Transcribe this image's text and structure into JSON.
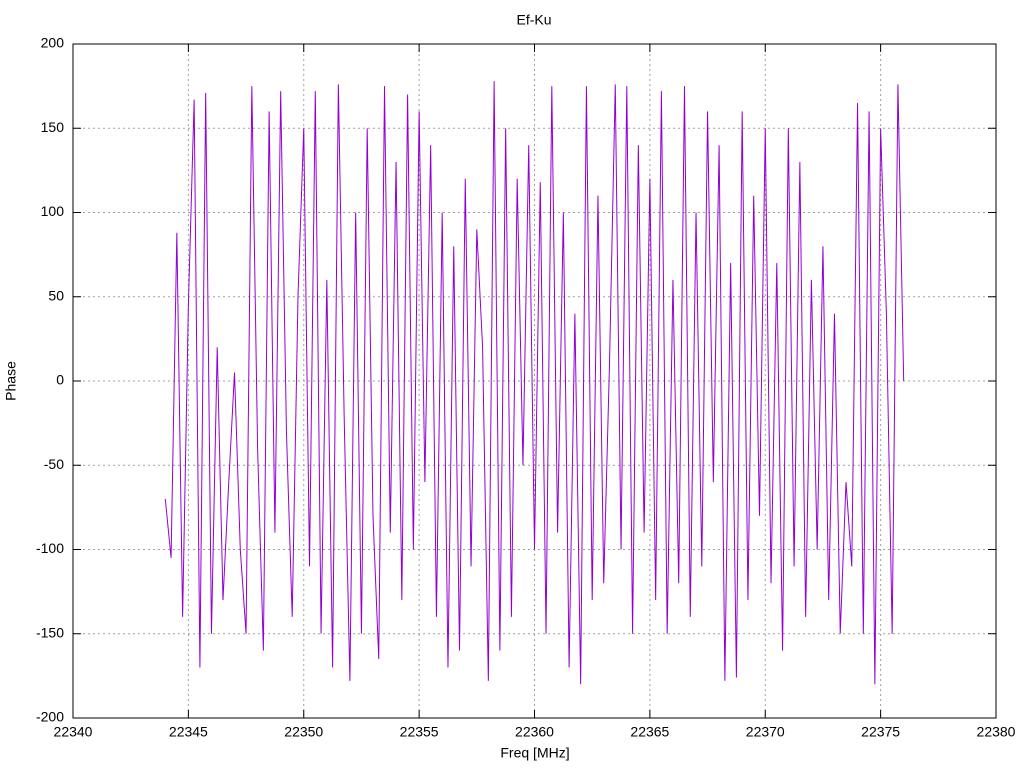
{
  "chart_data": {
    "type": "line",
    "title": "Ef-Ku",
    "xlabel": "Freq [MHz]",
    "ylabel": "Phase",
    "xlim": [
      22340,
      22380
    ],
    "xticks": [
      22340,
      22345,
      22350,
      22355,
      22360,
      22365,
      22370,
      22375,
      22380
    ],
    "ylim": [
      -200,
      200
    ],
    "yticks": [
      -200,
      -150,
      -100,
      -50,
      0,
      50,
      100,
      150,
      200
    ],
    "grid": true,
    "series": [
      {
        "color": "#9400d3",
        "x": [
          22344,
          22344.25,
          22344.5,
          22344.75,
          22345,
          22345.25,
          22345.5,
          22345.75,
          22346,
          22346.25,
          22346.5,
          22346.75,
          22347,
          22347.25,
          22347.5,
          22347.75,
          22348,
          22348.25,
          22348.5,
          22348.75,
          22349,
          22349.25,
          22349.5,
          22349.75,
          22350,
          22350.25,
          22350.5,
          22350.75,
          22351,
          22351.25,
          22351.5,
          22351.75,
          22352,
          22352.25,
          22352.5,
          22352.75,
          22353,
          22353.25,
          22353.5,
          22353.75,
          22354,
          22354.25,
          22354.5,
          22354.75,
          22355,
          22355.25,
          22355.5,
          22355.75,
          22356,
          22356.25,
          22356.5,
          22356.75,
          22357,
          22357.25,
          22357.5,
          22357.75,
          22358,
          22358.25,
          22358.5,
          22358.75,
          22359,
          22359.25,
          22359.5,
          22359.75,
          22360,
          22360.25,
          22360.5,
          22360.75,
          22361,
          22361.25,
          22361.5,
          22361.75,
          22362,
          22362.25,
          22362.5,
          22362.75,
          22363,
          22363.25,
          22363.5,
          22363.75,
          22364,
          22364.25,
          22364.5,
          22364.75,
          22365,
          22365.25,
          22365.5,
          22365.75,
          22366,
          22366.25,
          22366.5,
          22366.75,
          22367,
          22367.25,
          22367.5,
          22367.75,
          22368,
          22368.25,
          22368.5,
          22368.75,
          22369,
          22369.25,
          22369.5,
          22369.75,
          22370,
          22370.25,
          22370.5,
          22370.75,
          22371,
          22371.25,
          22371.5,
          22371.75,
          22372,
          22372.25,
          22372.5,
          22372.75,
          22373,
          22373.25,
          22373.5,
          22373.75,
          22374,
          22374.25,
          22374.5,
          22374.75,
          22375,
          22375.25,
          22375.5,
          22375.75,
          22376
        ],
        "values": [
          -70,
          -105,
          88,
          -140,
          45,
          167,
          -170,
          171,
          -150,
          20,
          -130,
          -60,
          5,
          -100,
          -150,
          175,
          -40,
          -160,
          160,
          -90,
          172,
          -30,
          -140,
          50,
          150,
          -110,
          172,
          -150,
          60,
          -170,
          176,
          -20,
          -178,
          100,
          -150,
          150,
          -80,
          -165,
          175,
          -90,
          130,
          -130,
          170,
          -100,
          160,
          -60,
          140,
          -140,
          100,
          -170,
          80,
          -160,
          120,
          -110,
          90,
          20,
          -178,
          178,
          -160,
          150,
          -140,
          120,
          -50,
          140,
          -100,
          118,
          -150,
          175,
          -90,
          100,
          -170,
          40,
          -180,
          175,
          -130,
          110,
          -120,
          10,
          176,
          -100,
          175,
          -150,
          140,
          -90,
          120,
          -130,
          172,
          -150,
          60,
          -120,
          175,
          -140,
          100,
          -110,
          160,
          -60,
          140,
          -178,
          70,
          -176,
          160,
          -130,
          110,
          -80,
          150,
          -120,
          70,
          -160,
          150,
          -110,
          130,
          -140,
          60,
          -100,
          80,
          -130,
          40,
          -150,
          -60,
          -110,
          165,
          -150,
          160,
          -180,
          150,
          40,
          -150,
          176,
          0
        ]
      }
    ]
  }
}
